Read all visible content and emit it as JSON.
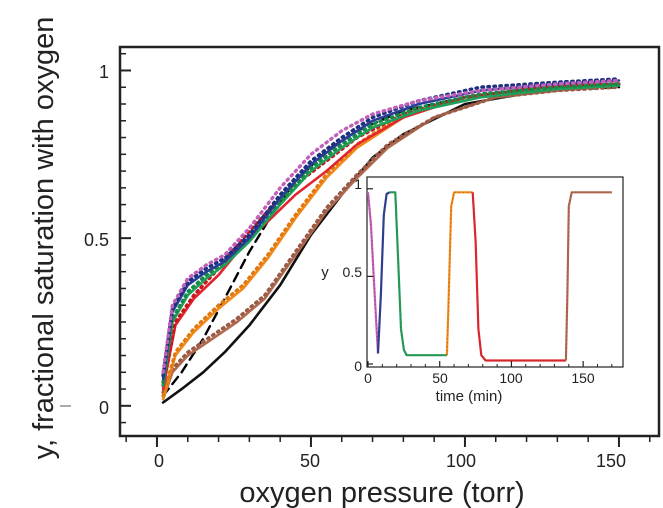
{
  "chart_data": [
    {
      "type": "line",
      "title": "",
      "xlabel": "oxygen pressure (torr)",
      "ylabel": "y, fractional saturation with oxygen",
      "xlim": [
        -12,
        163
      ],
      "ylim": [
        -0.09,
        1.07
      ],
      "xticks": [
        0,
        50,
        100,
        150
      ],
      "yticks": [
        0,
        0.5,
        1
      ],
      "xtick_labels": [
        "0",
        "50",
        "100",
        "150"
      ],
      "ytick_labels": [
        "0",
        "0.5",
        "1"
      ],
      "series": [
        {
          "name": "model (black dashed)",
          "color": "#000000",
          "style": "dashed",
          "x": [
            2,
            8,
            15,
            22,
            30,
            38,
            45,
            55,
            65,
            80,
            100,
            125,
            150
          ],
          "y": [
            0.03,
            0.1,
            0.2,
            0.32,
            0.46,
            0.58,
            0.67,
            0.76,
            0.82,
            0.88,
            0.92,
            0.94,
            0.95
          ]
        },
        {
          "name": "black solid",
          "color": "#111111",
          "style": "solid",
          "x": [
            2,
            8,
            15,
            22,
            30,
            40,
            50,
            60,
            70,
            80,
            100,
            125,
            150
          ],
          "y": [
            0.01,
            0.05,
            0.1,
            0.16,
            0.24,
            0.36,
            0.51,
            0.63,
            0.74,
            0.81,
            0.9,
            0.94,
            0.955
          ]
        },
        {
          "name": "brown solid",
          "color": "#b06a4f",
          "style": "solid",
          "x": [
            2,
            5,
            10,
            18,
            26,
            35,
            45,
            55,
            65,
            75,
            90,
            110,
            130,
            150
          ],
          "y": [
            0.02,
            0.1,
            0.15,
            0.2,
            0.25,
            0.32,
            0.45,
            0.58,
            0.68,
            0.77,
            0.86,
            0.92,
            0.94,
            0.955
          ]
        },
        {
          "name": "brown dotted",
          "color": "#9a5b47",
          "style": "dotted",
          "x": [
            2,
            5,
            10,
            18,
            26,
            35,
            45,
            55,
            65,
            75,
            90,
            110,
            130,
            150
          ],
          "y": [
            0.04,
            0.11,
            0.16,
            0.21,
            0.26,
            0.33,
            0.46,
            0.59,
            0.69,
            0.78,
            0.86,
            0.92,
            0.94,
            0.95
          ]
        },
        {
          "name": "orange solid",
          "color": "#f28a1a",
          "style": "solid",
          "x": [
            2,
            6,
            12,
            20,
            28,
            36,
            45,
            55,
            65,
            80,
            100,
            125,
            150
          ],
          "y": [
            0.02,
            0.15,
            0.22,
            0.29,
            0.35,
            0.44,
            0.56,
            0.68,
            0.77,
            0.86,
            0.92,
            0.95,
            0.96
          ]
        },
        {
          "name": "orange dotted",
          "color": "#e07a10",
          "style": "dotted",
          "x": [
            2,
            6,
            12,
            20,
            28,
            36,
            45,
            55,
            65,
            80,
            100,
            125,
            150
          ],
          "y": [
            0.03,
            0.16,
            0.23,
            0.3,
            0.36,
            0.45,
            0.57,
            0.69,
            0.78,
            0.87,
            0.92,
            0.95,
            0.96
          ]
        },
        {
          "name": "red solid",
          "color": "#e0262e",
          "style": "solid",
          "x": [
            2,
            6,
            12,
            20,
            28,
            36,
            45,
            55,
            65,
            80,
            100,
            125,
            150
          ],
          "y": [
            0.05,
            0.24,
            0.32,
            0.39,
            0.48,
            0.55,
            0.63,
            0.7,
            0.78,
            0.86,
            0.92,
            0.95,
            0.96
          ]
        },
        {
          "name": "red dotted",
          "color": "#c8161e",
          "style": "dotted",
          "x": [
            2,
            6,
            12,
            20,
            28,
            36,
            45,
            55,
            65,
            80,
            100,
            125,
            150
          ],
          "y": [
            0.06,
            0.25,
            0.33,
            0.41,
            0.5,
            0.58,
            0.66,
            0.73,
            0.8,
            0.87,
            0.92,
            0.95,
            0.96
          ]
        },
        {
          "name": "green solid",
          "color": "#1fa05a",
          "style": "solid",
          "x": [
            2,
            5,
            10,
            16,
            22,
            30,
            40,
            50,
            60,
            70,
            85,
            105,
            130,
            150
          ],
          "y": [
            0.06,
            0.25,
            0.33,
            0.38,
            0.42,
            0.49,
            0.6,
            0.7,
            0.77,
            0.83,
            0.88,
            0.92,
            0.945,
            0.955
          ]
        },
        {
          "name": "green dotted",
          "color": "#168a48",
          "style": "dotted",
          "x": [
            2,
            5,
            10,
            16,
            22,
            30,
            40,
            50,
            60,
            70,
            85,
            105,
            130,
            150
          ],
          "y": [
            0.07,
            0.26,
            0.34,
            0.39,
            0.43,
            0.5,
            0.61,
            0.71,
            0.78,
            0.84,
            0.89,
            0.93,
            0.95,
            0.96
          ]
        },
        {
          "name": "blue solid",
          "color": "#2a3d96",
          "style": "solid",
          "x": [
            2,
            5,
            10,
            16,
            22,
            30,
            40,
            50,
            60,
            70,
            85,
            105,
            130,
            150
          ],
          "y": [
            0.08,
            0.28,
            0.36,
            0.4,
            0.43,
            0.5,
            0.62,
            0.72,
            0.79,
            0.85,
            0.9,
            0.94,
            0.96,
            0.97
          ]
        },
        {
          "name": "blue dotted",
          "color": "#1f2f80",
          "style": "dotted",
          "x": [
            2,
            5,
            10,
            16,
            22,
            30,
            40,
            50,
            60,
            70,
            85,
            105,
            130,
            150
          ],
          "y": [
            0.09,
            0.29,
            0.37,
            0.41,
            0.44,
            0.51,
            0.63,
            0.73,
            0.8,
            0.86,
            0.91,
            0.95,
            0.965,
            0.975
          ]
        },
        {
          "name": "magenta dotted",
          "color": "#c060b8",
          "style": "dotted",
          "x": [
            2,
            5,
            10,
            16,
            22,
            30,
            40,
            50,
            60,
            70,
            85,
            105,
            130,
            150
          ],
          "y": [
            0.1,
            0.3,
            0.38,
            0.42,
            0.45,
            0.53,
            0.65,
            0.75,
            0.82,
            0.87,
            0.91,
            0.94,
            0.96,
            0.97
          ]
        }
      ]
    },
    {
      "type": "line",
      "title": "",
      "xlabel": "time (min)",
      "ylabel": "y",
      "xlim": [
        0,
        175
      ],
      "ylim": [
        0,
        1.05
      ],
      "xticks": [
        0,
        50,
        100,
        150
      ],
      "yticks": [
        0,
        0.5,
        1
      ],
      "xtick_labels": [
        "0",
        "50",
        "100",
        "150"
      ],
      "ytick_labels": [
        "0",
        "0.5",
        "1"
      ],
      "series": [
        {
          "name": "magenta",
          "color": "#c060b8",
          "x": [
            0,
            2,
            4,
            6,
            7
          ],
          "y": [
            0.98,
            0.8,
            0.5,
            0.2,
            0.06
          ]
        },
        {
          "name": "blue",
          "color": "#2a3d96",
          "x": [
            7,
            9,
            11,
            13,
            15
          ],
          "y": [
            0.06,
            0.4,
            0.85,
            0.97,
            0.98
          ]
        },
        {
          "name": "green",
          "color": "#1fa05a",
          "x": [
            15,
            19,
            21,
            23,
            25,
            27,
            55
          ],
          "y": [
            0.98,
            0.98,
            0.6,
            0.2,
            0.08,
            0.05,
            0.05
          ]
        },
        {
          "name": "orange",
          "color": "#f28a1a",
          "x": [
            55,
            56,
            58,
            60,
            73
          ],
          "y": [
            0.05,
            0.3,
            0.9,
            0.98,
            0.98
          ]
        },
        {
          "name": "red",
          "color": "#e0262e",
          "x": [
            73,
            75,
            77,
            79,
            82,
            138
          ],
          "y": [
            0.98,
            0.7,
            0.2,
            0.05,
            0.02,
            0.02
          ]
        },
        {
          "name": "brown",
          "color": "#b06a4f",
          "x": [
            138,
            139,
            140,
            142,
            170
          ],
          "y": [
            0.02,
            0.4,
            0.9,
            0.98,
            0.98
          ]
        }
      ]
    }
  ]
}
